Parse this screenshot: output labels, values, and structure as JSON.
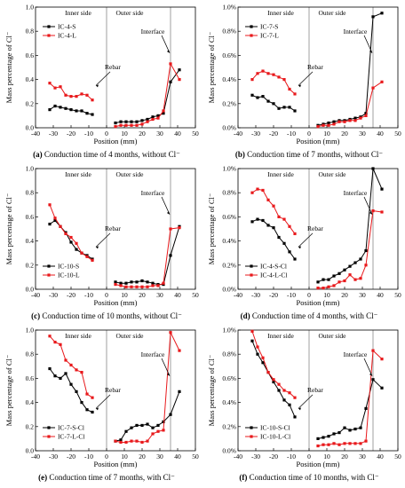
{
  "figure": {
    "ylabel": "Mass percentage of Cl⁻",
    "xlabel": "Position (mm)",
    "region_labels": {
      "inner": "Inner side",
      "outer": "Outer side",
      "rebar": "Rebar",
      "interface": "Interface"
    },
    "colors": {
      "series_s": "#000000",
      "series_l": "#e8191c",
      "divider": "#888888"
    }
  },
  "chart_data": [
    {
      "type": "line",
      "caption_letter": "(a)",
      "caption": "Conduction time of 4 months, without Cl⁻",
      "xlim": [
        -40,
        50
      ],
      "ylim": [
        0,
        1.0
      ],
      "xticks": [
        "-40",
        "-30",
        "-20",
        "-10",
        "0",
        "10",
        "20",
        "30",
        "40",
        "50"
      ],
      "yticks": [
        "0.0",
        "0.2",
        "0.4",
        "0.6",
        "0.8",
        "1.0"
      ],
      "legend": "top-left",
      "series": [
        {
          "name": "IC-4-S",
          "color": "#000000",
          "x": [
            -32,
            -29,
            -26,
            -23,
            -20,
            -17,
            -14,
            -11,
            -8,
            5,
            8,
            11,
            14,
            17,
            20,
            23,
            26,
            29,
            32,
            36,
            41
          ],
          "y": [
            0.15,
            0.18,
            0.17,
            0.16,
            0.15,
            0.14,
            0.14,
            0.12,
            0.11,
            0.04,
            0.05,
            0.05,
            0.05,
            0.05,
            0.06,
            0.07,
            0.09,
            0.1,
            0.12,
            0.38,
            0.48
          ]
        },
        {
          "name": "IC-4-L",
          "color": "#e8191c",
          "x": [
            -32,
            -29,
            -26,
            -23,
            -20,
            -17,
            -14,
            -11,
            -8,
            5,
            8,
            11,
            14,
            17,
            20,
            23,
            26,
            29,
            32,
            36,
            41
          ],
          "y": [
            0.37,
            0.33,
            0.34,
            0.27,
            0.26,
            0.26,
            0.28,
            0.27,
            0.23,
            0.01,
            0.02,
            0.02,
            0.02,
            0.02,
            0.03,
            0.05,
            0.07,
            0.08,
            0.14,
            0.53,
            0.4
          ]
        }
      ]
    },
    {
      "type": "line",
      "caption_letter": "(b)",
      "caption": "Conduction time of 7 months, without Cl⁻",
      "xlim": [
        -40,
        50
      ],
      "ylim": [
        0,
        1.0
      ],
      "xticks": [
        "-40",
        "-30",
        "-20",
        "-10",
        "0",
        "10",
        "20",
        "30",
        "40",
        "50"
      ],
      "yticks": [
        "0.0%",
        "0.2%",
        "0.4%",
        "0.6%",
        "0.8%",
        "1.0%"
      ],
      "legend": "top-left",
      "series": [
        {
          "name": "IC-7-S",
          "color": "#000000",
          "x": [
            -32,
            -29,
            -26,
            -23,
            -20,
            -17,
            -14,
            -11,
            -8,
            5,
            8,
            11,
            14,
            17,
            20,
            23,
            26,
            29,
            32,
            36,
            41
          ],
          "y": [
            0.27,
            0.25,
            0.26,
            0.22,
            0.2,
            0.16,
            0.17,
            0.17,
            0.14,
            0.02,
            0.03,
            0.04,
            0.05,
            0.06,
            0.06,
            0.07,
            0.08,
            0.09,
            0.12,
            0.92,
            0.95
          ]
        },
        {
          "name": "IC-7-L",
          "color": "#e8191c",
          "x": [
            -32,
            -29,
            -26,
            -23,
            -20,
            -17,
            -14,
            -11,
            -8,
            5,
            8,
            11,
            14,
            17,
            20,
            23,
            26,
            29,
            32,
            36,
            41
          ],
          "y": [
            0.4,
            0.45,
            0.47,
            0.45,
            0.44,
            0.42,
            0.4,
            0.32,
            0.28,
            0.01,
            0.02,
            0.02,
            0.03,
            0.05,
            0.05,
            0.06,
            0.06,
            0.08,
            0.1,
            0.33,
            0.38
          ]
        }
      ]
    },
    {
      "type": "line",
      "caption_letter": "(c)",
      "caption": "Conduction time of 10 months, without Cl⁻",
      "xlim": [
        -40,
        50
      ],
      "ylim": [
        0,
        1.0
      ],
      "xticks": [
        "-40",
        "-30",
        "-20",
        "-10",
        "0",
        "10",
        "20",
        "30",
        "40",
        "50"
      ],
      "yticks": [
        "0.0",
        "0.2",
        "0.4",
        "0.6",
        "0.8",
        "1.0"
      ],
      "legend": "bottom-left",
      "series": [
        {
          "name": "IC-10-S",
          "color": "#000000",
          "x": [
            -32,
            -29,
            -26,
            -23,
            -20,
            -17,
            -14,
            -11,
            -8,
            5,
            8,
            11,
            14,
            17,
            20,
            23,
            26,
            29,
            32,
            36,
            41
          ],
          "y": [
            0.54,
            0.57,
            0.52,
            0.47,
            0.39,
            0.33,
            0.3,
            0.28,
            0.25,
            0.06,
            0.05,
            0.05,
            0.06,
            0.06,
            0.07,
            0.06,
            0.05,
            0.04,
            0.04,
            0.28,
            0.52
          ]
        },
        {
          "name": "IC-10-L",
          "color": "#e8191c",
          "x": [
            -32,
            -29,
            -26,
            -23,
            -20,
            -17,
            -14,
            -11,
            -8,
            5,
            8,
            11,
            14,
            17,
            20,
            23,
            26,
            29,
            32,
            36,
            41
          ],
          "y": [
            0.7,
            0.59,
            0.52,
            0.46,
            0.43,
            0.38,
            0.3,
            0.27,
            0.24,
            0.04,
            0.03,
            0.02,
            0.02,
            0.02,
            0.02,
            0.02,
            0.03,
            0.03,
            0.05,
            0.5,
            0.51
          ]
        }
      ]
    },
    {
      "type": "line",
      "caption_letter": "(d)",
      "caption": "Conduction time of 4 months, with Cl⁻",
      "xlim": [
        -40,
        50
      ],
      "ylim": [
        0,
        1.0
      ],
      "xticks": [
        "-40",
        "-30",
        "-20",
        "-10",
        "0",
        "10",
        "20",
        "30",
        "40",
        "50"
      ],
      "yticks": [
        "0.0%",
        "0.2%",
        "0.4%",
        "0.6%",
        "0.8%",
        "1.0%"
      ],
      "legend": "bottom-left",
      "series": [
        {
          "name": "IC-4-S-Cl",
          "color": "#000000",
          "x": [
            -32,
            -29,
            -26,
            -23,
            -20,
            -17,
            -14,
            -11,
            -8,
            5,
            8,
            11,
            14,
            17,
            20,
            23,
            26,
            29,
            32,
            36,
            41
          ],
          "y": [
            0.56,
            0.58,
            0.57,
            0.53,
            0.51,
            0.43,
            0.38,
            0.31,
            0.25,
            0.06,
            0.08,
            0.08,
            0.11,
            0.13,
            0.16,
            0.19,
            0.22,
            0.25,
            0.32,
            1.0,
            0.83
          ]
        },
        {
          "name": "IC-4-L-Cl",
          "color": "#e8191c",
          "x": [
            -32,
            -29,
            -26,
            -23,
            -20,
            -17,
            -14,
            -11,
            -8,
            5,
            8,
            11,
            14,
            17,
            20,
            23,
            26,
            29,
            32,
            36,
            41
          ],
          "y": [
            0.8,
            0.83,
            0.82,
            0.74,
            0.69,
            0.6,
            0.58,
            0.52,
            0.46,
            0.01,
            0.01,
            0.02,
            0.03,
            0.06,
            0.07,
            0.12,
            0.08,
            0.09,
            0.2,
            0.65,
            0.64
          ]
        }
      ]
    },
    {
      "type": "line",
      "caption_letter": "(e)",
      "caption": "Conduction time of 7 months, with Cl⁻",
      "xlim": [
        -40,
        50
      ],
      "ylim": [
        0,
        1.0
      ],
      "xticks": [
        "-40",
        "-30",
        "-20",
        "-10",
        "0",
        "10",
        "20",
        "30",
        "40",
        "50"
      ],
      "yticks": [
        "0.0",
        "0.2",
        "0.4",
        "0.6",
        "0.8",
        "1.0"
      ],
      "legend": "bottom-left",
      "series": [
        {
          "name": "IC-7-S-Cl",
          "color": "#000000",
          "x": [
            -32,
            -29,
            -26,
            -23,
            -20,
            -17,
            -14,
            -11,
            -8,
            5,
            8,
            11,
            14,
            17,
            20,
            23,
            26,
            29,
            32,
            36,
            41
          ],
          "y": [
            0.68,
            0.62,
            0.6,
            0.64,
            0.55,
            0.49,
            0.4,
            0.34,
            0.32,
            0.08,
            0.09,
            0.16,
            0.19,
            0.21,
            0.21,
            0.22,
            0.19,
            0.21,
            0.24,
            0.3,
            0.49
          ]
        },
        {
          "name": "IC-7-L-Cl",
          "color": "#e8191c",
          "x": [
            -32,
            -29,
            -26,
            -23,
            -20,
            -17,
            -14,
            -11,
            -8,
            5,
            8,
            11,
            14,
            17,
            20,
            23,
            26,
            29,
            32,
            36,
            41
          ],
          "y": [
            0.95,
            0.9,
            0.88,
            0.75,
            0.71,
            0.67,
            0.65,
            0.47,
            0.44,
            0.08,
            0.07,
            0.07,
            0.08,
            0.08,
            0.07,
            0.08,
            0.14,
            0.16,
            0.17,
            0.98,
            0.83
          ]
        }
      ]
    },
    {
      "type": "line",
      "caption_letter": "(f)",
      "caption": "Conduction time of 10 months, with Cl⁻",
      "xlim": [
        -40,
        50
      ],
      "ylim": [
        0,
        1.0
      ],
      "xticks": [
        "-40",
        "-30",
        "-20",
        "-10",
        "0",
        "10",
        "20",
        "30",
        "40",
        "50"
      ],
      "yticks": [
        "0.0%",
        "0.2%",
        "0.4%",
        "0.6%",
        "0.8%",
        "1.0%"
      ],
      "legend": "bottom-left",
      "series": [
        {
          "name": "IC-10-S-Cl",
          "color": "#000000",
          "x": [
            -32,
            -29,
            -26,
            -23,
            -20,
            -17,
            -14,
            -11,
            -8,
            5,
            8,
            11,
            14,
            17,
            20,
            23,
            26,
            29,
            32,
            36,
            41
          ],
          "y": [
            0.91,
            0.8,
            0.73,
            0.65,
            0.57,
            0.5,
            0.42,
            0.38,
            0.28,
            0.1,
            0.11,
            0.12,
            0.14,
            0.15,
            0.19,
            0.17,
            0.18,
            0.19,
            0.35,
            0.59,
            0.52
          ]
        },
        {
          "name": "IC-10-L-Cl",
          "color": "#e8191c",
          "x": [
            -32,
            -29,
            -26,
            -23,
            -20,
            -17,
            -14,
            -11,
            -8,
            5,
            8,
            11,
            14,
            17,
            20,
            23,
            26,
            29,
            32,
            36,
            41
          ],
          "y": [
            0.99,
            0.86,
            0.77,
            0.65,
            0.59,
            0.55,
            0.5,
            0.48,
            0.44,
            0.04,
            0.05,
            0.05,
            0.06,
            0.05,
            0.06,
            0.06,
            0.06,
            0.06,
            0.08,
            0.83,
            0.76
          ]
        }
      ]
    }
  ]
}
